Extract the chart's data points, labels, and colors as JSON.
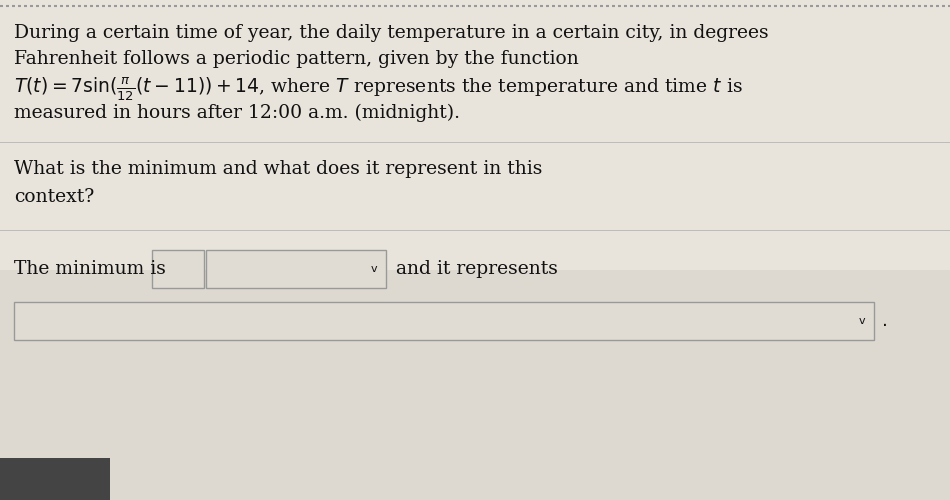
{
  "bg_color": "#e8e4dc",
  "upper_bg": "#e8e4dc",
  "lower_bg": "#ddd8d0",
  "box_fill": "#e0dcd4",
  "text_color": "#111111",
  "line1": "During a certain time of year, the daily temperature in a certain city, in degrees",
  "line2": "Fahrenheit follows a periodic pattern, given by the function",
  "line3": "$T(t) = 7\\sin(\\frac{\\pi}{12}(t - 11)) + 14$, where $T$ represents the temperature and time $t$ is",
  "line4": "measured in hours after 12:00 a.m. (midnight).",
  "question_line1": "What is the minimum and what does it represent in this",
  "question_line2": "context?",
  "answer_prefix": "The minimum is",
  "answer_suffix": "and it represents",
  "dot": ".",
  "font_size": 13.5,
  "dotted_color": "#999999",
  "divider_color": "#bbbbbb",
  "box_border": "#999999",
  "dark_bar_color": "#444444",
  "chevron": "v"
}
